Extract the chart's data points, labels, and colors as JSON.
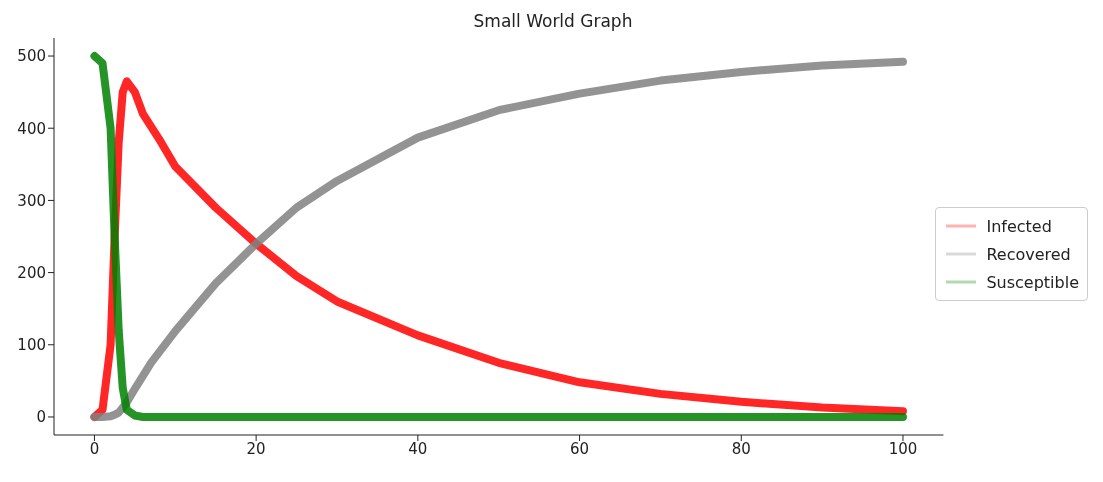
{
  "chart_data": {
    "type": "line",
    "title": "Small World Graph",
    "legend": "right",
    "grid": false,
    "marker": "none",
    "line_style": "solid",
    "xlim": [
      -5,
      105
    ],
    "xticks": [
      0,
      20,
      40,
      60,
      80,
      100
    ],
    "ylim": [
      -25,
      525
    ],
    "yticks": [
      0,
      100,
      200,
      300,
      400,
      500
    ],
    "series": [
      {
        "name": "Infected",
        "color": "#ff0000",
        "x": [
          0,
          1,
          2,
          2.5,
          3,
          3.5,
          4,
          5,
          6,
          8,
          10,
          15,
          20,
          25,
          30,
          40,
          50,
          60,
          70,
          80,
          90,
          100
        ],
        "values": [
          0,
          10,
          100,
          250,
          380,
          450,
          465,
          450,
          420,
          385,
          347,
          290,
          240,
          195,
          160,
          113,
          75,
          48,
          32,
          21,
          13,
          8
        ]
      },
      {
        "name": "Recovered",
        "color": "#808080",
        "x": [
          0,
          1,
          2,
          2.5,
          3,
          4,
          5,
          7,
          10,
          15,
          20,
          25,
          30,
          40,
          50,
          60,
          70,
          80,
          90,
          100
        ],
        "values": [
          0,
          0,
          1,
          3,
          6,
          20,
          39,
          75,
          119,
          185,
          240,
          290,
          327,
          387,
          425,
          448,
          466,
          478,
          487,
          492
        ]
      },
      {
        "name": "Susceptible",
        "color": "#008000",
        "x": [
          0,
          1,
          2,
          2.5,
          3,
          3.5,
          4,
          5,
          6,
          10,
          20,
          40,
          60,
          80,
          100
        ],
        "values": [
          500,
          490,
          400,
          250,
          120,
          40,
          10,
          2,
          0,
          0,
          0,
          0,
          0,
          0,
          0
        ]
      }
    ]
  }
}
